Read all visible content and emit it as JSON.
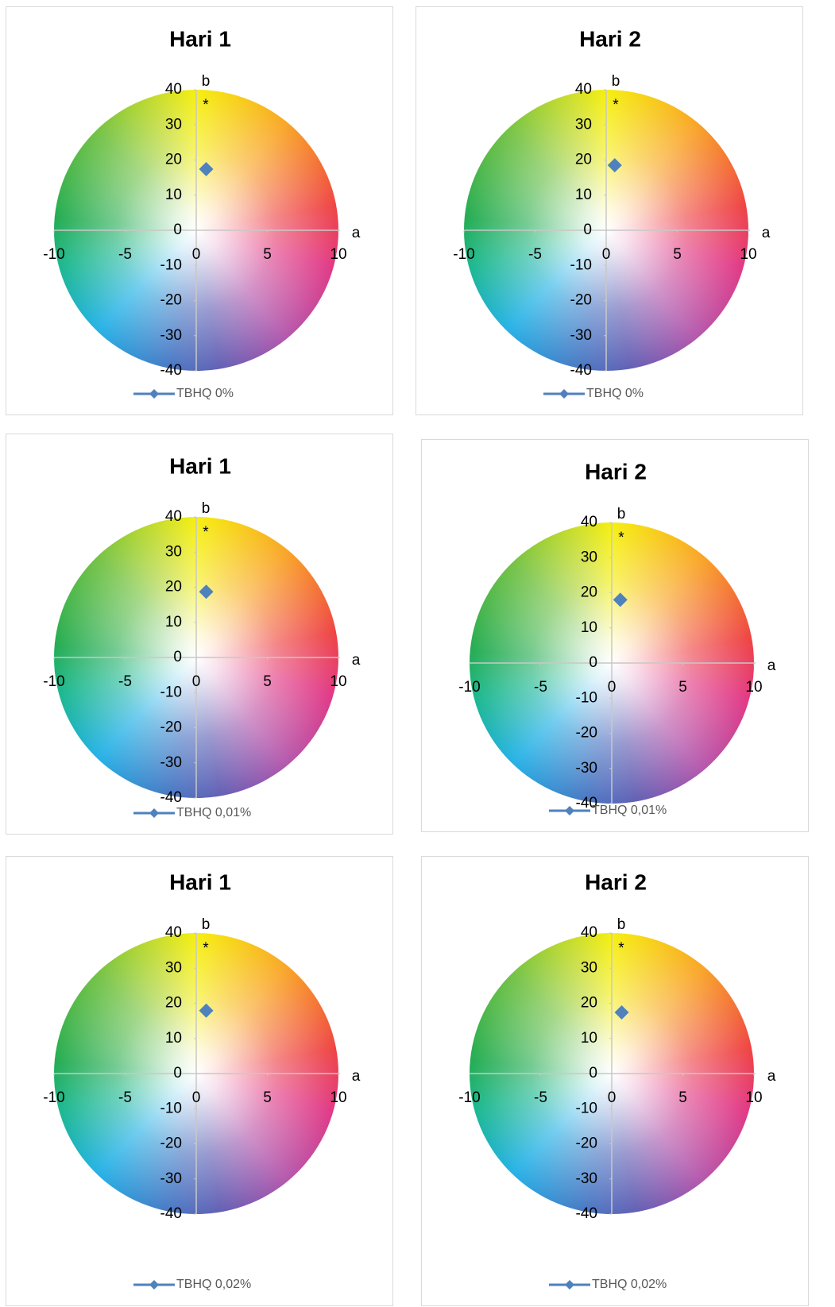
{
  "chart_data": [
    {
      "type": "scatter",
      "title": "Hari 1",
      "x_label": "a",
      "y_label": "b",
      "annotation": "*",
      "x": [
        0.7
      ],
      "series": [
        {
          "name": "TBHQ 0%",
          "color": "#4f81bd",
          "values": [
            17.4
          ]
        }
      ],
      "xlim": [
        -10,
        10
      ],
      "ylim": [
        -40,
        40
      ],
      "xticks": [
        -10,
        -5,
        0,
        5,
        10
      ],
      "yticks": [
        -40,
        -30,
        -20,
        -10,
        0,
        10,
        20,
        30,
        40
      ],
      "legend": "bottom"
    },
    {
      "type": "scatter",
      "title": "Hari 2",
      "x_label": "a",
      "y_label": "b",
      "annotation": "*",
      "x": [
        0.6
      ],
      "series": [
        {
          "name": "TBHQ 0%",
          "color": "#4f81bd",
          "values": [
            18.5
          ]
        }
      ],
      "xlim": [
        -10,
        10
      ],
      "ylim": [
        -40,
        40
      ],
      "xticks": [
        -10,
        -5,
        0,
        5,
        10
      ],
      "yticks": [
        -40,
        -30,
        -20,
        -10,
        0,
        10,
        20,
        30,
        40
      ],
      "legend": "bottom"
    },
    {
      "type": "scatter",
      "title": "Hari 1",
      "x_label": "a",
      "y_label": "b",
      "annotation": "*",
      "x": [
        0.7
      ],
      "series": [
        {
          "name": "TBHQ 0,01%",
          "color": "#4f81bd",
          "values": [
            18.7
          ]
        }
      ],
      "xlim": [
        -10,
        10
      ],
      "ylim": [
        -40,
        40
      ],
      "xticks": [
        -10,
        -5,
        0,
        5,
        10
      ],
      "yticks": [
        -40,
        -30,
        -20,
        -10,
        0,
        10,
        20,
        30,
        40
      ],
      "legend": "bottom"
    },
    {
      "type": "scatter",
      "title": "Hari 2",
      "x_label": "a",
      "y_label": "b",
      "annotation": "*",
      "x": [
        0.6
      ],
      "series": [
        {
          "name": "TBHQ 0,01%",
          "color": "#4f81bd",
          "values": [
            18.0
          ]
        }
      ],
      "xlim": [
        -10,
        10
      ],
      "ylim": [
        -40,
        40
      ],
      "xticks": [
        -10,
        -5,
        0,
        5,
        10
      ],
      "yticks": [
        -40,
        -30,
        -20,
        -10,
        0,
        10,
        20,
        30,
        40
      ],
      "legend": "bottom"
    },
    {
      "type": "scatter",
      "title": "Hari 1",
      "x_label": "a",
      "y_label": "b",
      "annotation": "*",
      "x": [
        0.7
      ],
      "series": [
        {
          "name": "TBHQ 0,02%",
          "color": "#4f81bd",
          "values": [
            17.9
          ]
        }
      ],
      "xlim": [
        -10,
        10
      ],
      "ylim": [
        -40,
        40
      ],
      "xticks": [
        -10,
        -5,
        0,
        5,
        10
      ],
      "yticks": [
        -40,
        -30,
        -20,
        -10,
        0,
        10,
        20,
        30,
        40
      ],
      "legend": "bottom"
    },
    {
      "type": "scatter",
      "title": "Hari 2",
      "x_label": "a",
      "y_label": "b",
      "annotation": "*",
      "x": [
        0.7
      ],
      "series": [
        {
          "name": "TBHQ 0,02%",
          "color": "#4f81bd",
          "values": [
            17.4
          ]
        }
      ],
      "xlim": [
        -10,
        10
      ],
      "ylim": [
        -40,
        40
      ],
      "xticks": [
        -10,
        -5,
        0,
        5,
        10
      ],
      "yticks": [
        -40,
        -30,
        -20,
        -10,
        0,
        10,
        20,
        30,
        40
      ],
      "legend": "bottom"
    }
  ]
}
